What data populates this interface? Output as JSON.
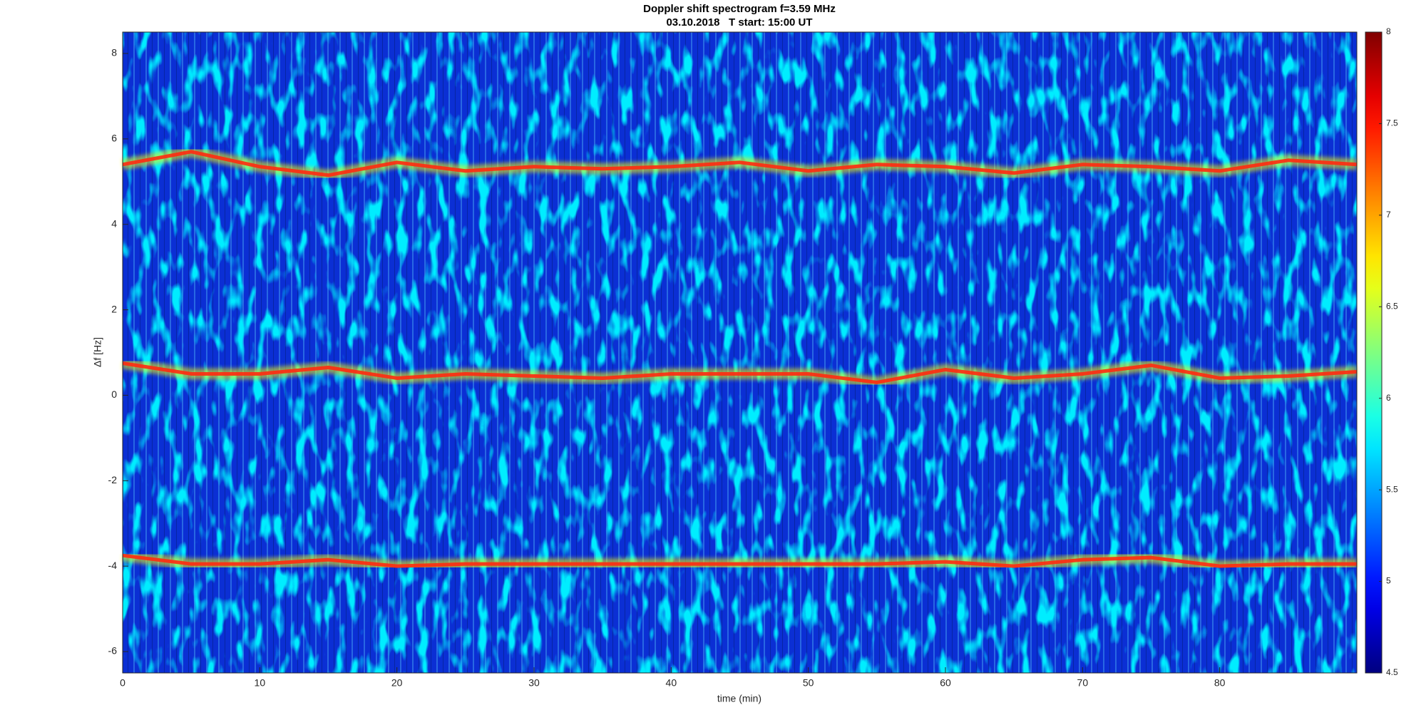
{
  "chart_data": {
    "type": "spectrogram",
    "title": "Doppler shift spectrogram f=3.59 MHz",
    "subtitle": "03.10.2018   T start: 15:00 UT",
    "x_label": "time (min)",
    "y_label": "Δf [Hz]",
    "xlim": [
      0,
      90
    ],
    "xticks": [
      0,
      10,
      20,
      30,
      40,
      50,
      60,
      70,
      80
    ],
    "ylim": [
      -6.5,
      8.5
    ],
    "yticks": [
      -6,
      -4,
      -2,
      0,
      2,
      4,
      6,
      8
    ],
    "colormap": "jet",
    "clim": [
      4.5,
      8
    ],
    "cticks": [
      4.5,
      5,
      5.5,
      6,
      6.5,
      7,
      7.5,
      8
    ],
    "x": [
      0,
      5,
      10,
      15,
      20,
      25,
      30,
      35,
      40,
      45,
      50,
      55,
      60,
      65,
      70,
      75,
      80,
      85,
      90
    ],
    "series": [
      {
        "color": "#ff2a10",
        "values": [
          5.4,
          5.7,
          5.35,
          5.15,
          5.45,
          5.25,
          5.35,
          5.3,
          5.35,
          5.45,
          5.25,
          5.4,
          5.35,
          5.2,
          5.4,
          5.35,
          5.25,
          5.5,
          5.4
        ]
      },
      {
        "color": "#ff2a10",
        "values": [
          0.75,
          0.5,
          0.5,
          0.65,
          0.4,
          0.5,
          0.45,
          0.4,
          0.5,
          0.5,
          0.5,
          0.3,
          0.6,
          0.4,
          0.5,
          0.7,
          0.4,
          0.45,
          0.55
        ]
      },
      {
        "color": "#ff2a10",
        "values": [
          -3.75,
          -3.95,
          -3.95,
          -3.85,
          -4.0,
          -3.95,
          -3.95,
          -3.95,
          -3.95,
          -3.95,
          -3.95,
          -3.95,
          -3.9,
          -4.0,
          -3.85,
          -3.8,
          -4.0,
          -3.95,
          -3.95
        ]
      }
    ]
  }
}
